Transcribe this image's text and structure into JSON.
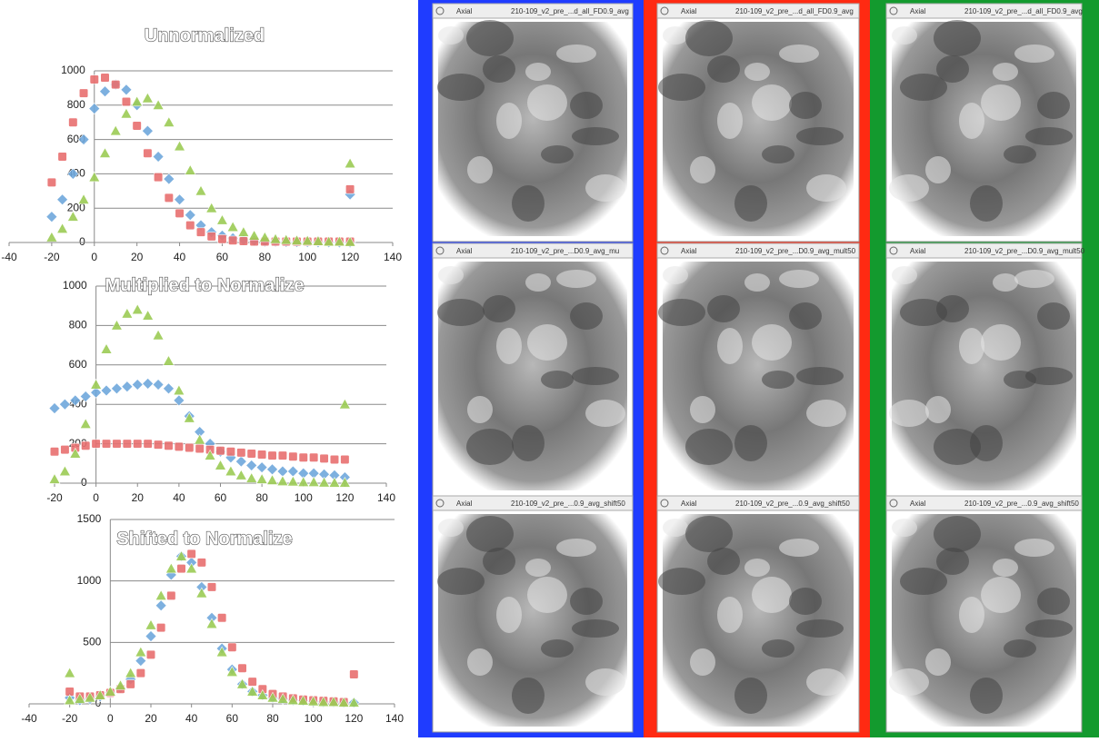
{
  "chart_data": [
    {
      "type": "scatter",
      "title": "Unnormalized",
      "xlim": [
        -40,
        140
      ],
      "xticks": [
        -40,
        -20,
        0,
        20,
        40,
        60,
        80,
        100,
        120,
        140
      ],
      "ylim": [
        0,
        1000
      ],
      "yticks": [
        0,
        200,
        400,
        600,
        800,
        1000
      ],
      "grid": true,
      "series": [
        {
          "color": "#6fa8dc",
          "marker": "diamond",
          "x": [
            -20,
            -15,
            -10,
            -5,
            0,
            5,
            10,
            15,
            20,
            25,
            30,
            35,
            40,
            45,
            50,
            55,
            60,
            65,
            70,
            75,
            80,
            85,
            90,
            95,
            100,
            105,
            110,
            115,
            120,
            120
          ],
          "values": [
            150,
            250,
            400,
            600,
            780,
            880,
            920,
            890,
            800,
            650,
            500,
            370,
            250,
            160,
            100,
            60,
            40,
            25,
            15,
            10,
            5,
            5,
            3,
            2,
            2,
            1,
            1,
            0,
            0,
            280
          ]
        },
        {
          "color": "#e87070",
          "marker": "square",
          "x": [
            -20,
            -15,
            -10,
            -5,
            0,
            5,
            10,
            15,
            20,
            25,
            30,
            35,
            40,
            45,
            50,
            55,
            60,
            65,
            70,
            75,
            80,
            85,
            90,
            95,
            100,
            105,
            110,
            115,
            120,
            120
          ],
          "values": [
            350,
            500,
            700,
            870,
            950,
            960,
            920,
            820,
            680,
            520,
            380,
            260,
            170,
            100,
            60,
            35,
            20,
            12,
            8,
            5,
            5,
            5,
            5,
            5,
            5,
            5,
            5,
            5,
            5,
            310
          ]
        },
        {
          "color": "#9ccc55",
          "marker": "triangle",
          "x": [
            -20,
            -15,
            -10,
            -5,
            0,
            5,
            10,
            15,
            20,
            25,
            30,
            35,
            40,
            45,
            50,
            55,
            60,
            65,
            70,
            75,
            80,
            85,
            90,
            95,
            100,
            105,
            110,
            115,
            120,
            120
          ],
          "values": [
            30,
            80,
            150,
            250,
            380,
            520,
            650,
            750,
            820,
            840,
            800,
            700,
            560,
            420,
            300,
            200,
            130,
            90,
            60,
            40,
            30,
            20,
            15,
            12,
            10,
            8,
            5,
            5,
            3,
            460
          ]
        }
      ]
    },
    {
      "type": "scatter",
      "title": "Multiplied to Normalize",
      "xlim": [
        -20,
        140
      ],
      "xticks": [
        -20,
        0,
        20,
        40,
        60,
        80,
        100,
        120,
        140
      ],
      "ylim": [
        0,
        1000
      ],
      "yticks": [
        0,
        200,
        400,
        600,
        800,
        1000
      ],
      "grid": true,
      "series": [
        {
          "color": "#6fa8dc",
          "marker": "diamond",
          "x": [
            -20,
            -15,
            -10,
            -5,
            0,
            5,
            10,
            15,
            20,
            25,
            30,
            35,
            40,
            45,
            50,
            55,
            60,
            65,
            70,
            75,
            80,
            85,
            90,
            95,
            100,
            105,
            110,
            115,
            120
          ],
          "values": [
            380,
            400,
            420,
            440,
            460,
            470,
            480,
            490,
            500,
            505,
            500,
            480,
            420,
            340,
            260,
            200,
            160,
            130,
            110,
            90,
            80,
            70,
            60,
            60,
            50,
            50,
            45,
            40,
            30
          ]
        },
        {
          "color": "#e87070",
          "marker": "square",
          "x": [
            -20,
            -15,
            -10,
            -5,
            0,
            5,
            10,
            15,
            20,
            25,
            30,
            35,
            40,
            45,
            50,
            55,
            60,
            65,
            70,
            75,
            80,
            85,
            90,
            95,
            100,
            105,
            110,
            115,
            120
          ],
          "values": [
            160,
            170,
            180,
            190,
            200,
            200,
            200,
            200,
            200,
            200,
            195,
            190,
            185,
            180,
            175,
            170,
            165,
            160,
            155,
            150,
            145,
            140,
            140,
            135,
            130,
            130,
            125,
            120,
            120
          ]
        },
        {
          "color": "#9ccc55",
          "marker": "triangle",
          "x": [
            -20,
            -15,
            -10,
            -5,
            0,
            5,
            10,
            15,
            20,
            25,
            30,
            35,
            40,
            45,
            50,
            55,
            60,
            65,
            70,
            75,
            80,
            85,
            90,
            95,
            100,
            105,
            110,
            115,
            120,
            120
          ],
          "values": [
            20,
            60,
            150,
            300,
            500,
            680,
            800,
            860,
            880,
            850,
            750,
            620,
            470,
            330,
            220,
            140,
            90,
            60,
            40,
            25,
            20,
            15,
            10,
            8,
            5,
            5,
            3,
            2,
            2,
            400
          ]
        }
      ]
    },
    {
      "type": "scatter",
      "title": "Shifted to Normalize",
      "xlim": [
        -40,
        140
      ],
      "xticks": [
        -40,
        -20,
        0,
        20,
        40,
        60,
        80,
        100,
        120,
        140
      ],
      "ylim": [
        0,
        1500
      ],
      "yticks": [
        0,
        500,
        1000,
        1500
      ],
      "grid": true,
      "series": [
        {
          "color": "#6fa8dc",
          "marker": "diamond",
          "x": [
            -20,
            -15,
            -10,
            -5,
            0,
            5,
            10,
            15,
            20,
            25,
            30,
            35,
            40,
            45,
            50,
            55,
            60,
            65,
            70,
            75,
            80,
            85,
            90,
            95,
            100,
            105,
            110,
            115,
            120
          ],
          "values": [
            50,
            30,
            40,
            60,
            90,
            130,
            200,
            350,
            550,
            800,
            1050,
            1200,
            1150,
            950,
            700,
            450,
            280,
            160,
            100,
            70,
            50,
            40,
            30,
            25,
            20,
            15,
            15,
            10,
            10
          ]
        },
        {
          "color": "#e87070",
          "marker": "square",
          "x": [
            -20,
            -15,
            -10,
            -5,
            0,
            5,
            10,
            15,
            20,
            25,
            30,
            35,
            40,
            45,
            50,
            55,
            60,
            65,
            70,
            75,
            80,
            85,
            90,
            95,
            100,
            105,
            110,
            115,
            120
          ],
          "values": [
            100,
            60,
            60,
            70,
            90,
            120,
            160,
            250,
            400,
            620,
            880,
            1100,
            1220,
            1150,
            950,
            700,
            460,
            290,
            180,
            120,
            80,
            60,
            45,
            35,
            30,
            25,
            20,
            15,
            240
          ]
        },
        {
          "color": "#9ccc55",
          "marker": "triangle",
          "x": [
            -20,
            -20,
            -15,
            -10,
            -5,
            0,
            5,
            10,
            15,
            20,
            25,
            30,
            35,
            40,
            45,
            50,
            55,
            60,
            65,
            70,
            75,
            80,
            85,
            90,
            95,
            100,
            105,
            110,
            115,
            120
          ],
          "values": [
            250,
            30,
            40,
            50,
            70,
            100,
            150,
            250,
            420,
            640,
            880,
            1100,
            1200,
            1100,
            900,
            650,
            420,
            260,
            160,
            100,
            70,
            50,
            40,
            30,
            25,
            20,
            15,
            15,
            10,
            10
          ]
        }
      ]
    }
  ],
  "panels": [
    {
      "view": "Axial",
      "file": "210-109_v2_pre_...d_all_FD0.9_avg"
    },
    {
      "view": "Axial",
      "file": "210-109_v2_pre_...D0.9_avg_mu"
    },
    {
      "view": "Axial",
      "file": "210-109_v2_pre_...0.9_avg_shift50"
    },
    {
      "view": "Axial",
      "file": "210-109_v2_pre_...d_all_FD0.9_avg"
    },
    {
      "view": "Axial",
      "file": "210-109_v2_pre_...D0.9_avg_mult50"
    },
    {
      "view": "Axial",
      "file": "210-109_v2_pre_...0.9_avg_shift50"
    },
    {
      "view": "Axial",
      "file": "210-109_v2_pre_...d_all_FD0.9_avg"
    },
    {
      "view": "Axial",
      "file": "210-109_v2_pre_...D0.9_avg_mult50"
    },
    {
      "view": "Axial",
      "file": "210-109_v2_pre_...0.9_avg_shift50"
    }
  ]
}
